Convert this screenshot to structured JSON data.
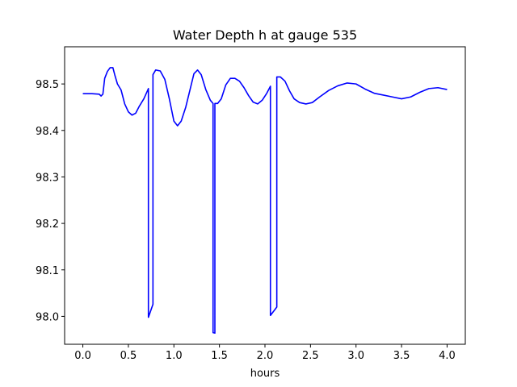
{
  "chart_data": {
    "type": "line",
    "title": "Water Depth h at gauge 535",
    "xlabel": "hours",
    "ylabel": "",
    "xlim": [
      -0.2,
      4.2
    ],
    "ylim": [
      97.94,
      98.58
    ],
    "x_ticks": [
      0.0,
      0.5,
      1.0,
      1.5,
      2.0,
      2.5,
      3.0,
      3.5,
      4.0
    ],
    "x_tick_labels": [
      "0.0",
      "0.5",
      "1.0",
      "1.5",
      "2.0",
      "2.5",
      "3.0",
      "3.5",
      "4.0"
    ],
    "y_ticks": [
      98.0,
      98.1,
      98.2,
      98.3,
      98.4,
      98.5
    ],
    "y_tick_labels": [
      "98.0",
      "98.1",
      "98.2",
      "98.3",
      "98.4",
      "98.5"
    ],
    "grid": false,
    "legend": "none",
    "series": [
      {
        "color": "#0000ff",
        "x": [
          0.0,
          0.1,
          0.18,
          0.2,
          0.22,
          0.24,
          0.27,
          0.3,
          0.33,
          0.35,
          0.38,
          0.42,
          0.46,
          0.5,
          0.54,
          0.58,
          0.62,
          0.67,
          0.72,
          0.72,
          0.77,
          0.77,
          0.8,
          0.85,
          0.9,
          0.95,
          1.0,
          1.04,
          1.08,
          1.13,
          1.18,
          1.22,
          1.26,
          1.3,
          1.35,
          1.4,
          1.43,
          1.43,
          1.45,
          1.45,
          1.48,
          1.52,
          1.57,
          1.62,
          1.67,
          1.72,
          1.77,
          1.82,
          1.87,
          1.92,
          1.97,
          2.02,
          2.06,
          2.06,
          2.13,
          2.13,
          2.17,
          2.22,
          2.27,
          2.32,
          2.38,
          2.45,
          2.52,
          2.6,
          2.7,
          2.8,
          2.9,
          3.0,
          3.1,
          3.2,
          3.3,
          3.4,
          3.5,
          3.6,
          3.7,
          3.8,
          3.9,
          4.0
        ],
        "y": [
          98.479,
          98.479,
          98.478,
          98.474,
          98.478,
          98.512,
          98.527,
          98.535,
          98.535,
          98.52,
          98.5,
          98.487,
          98.457,
          98.44,
          98.433,
          98.437,
          98.452,
          98.468,
          98.49,
          97.998,
          98.026,
          98.52,
          98.53,
          98.528,
          98.51,
          98.468,
          98.42,
          98.41,
          98.42,
          98.45,
          98.49,
          98.522,
          98.53,
          98.52,
          98.488,
          98.465,
          98.458,
          97.965,
          97.964,
          98.458,
          98.458,
          98.468,
          98.498,
          98.512,
          98.512,
          98.506,
          98.492,
          98.475,
          98.461,
          98.457,
          98.465,
          98.48,
          98.495,
          98.002,
          98.02,
          98.515,
          98.515,
          98.506,
          98.485,
          98.468,
          98.46,
          98.457,
          98.46,
          98.472,
          98.486,
          98.496,
          98.502,
          98.5,
          98.489,
          98.48,
          98.476,
          98.472,
          98.468,
          98.472,
          98.482,
          98.49,
          98.492,
          98.488
        ]
      }
    ]
  }
}
